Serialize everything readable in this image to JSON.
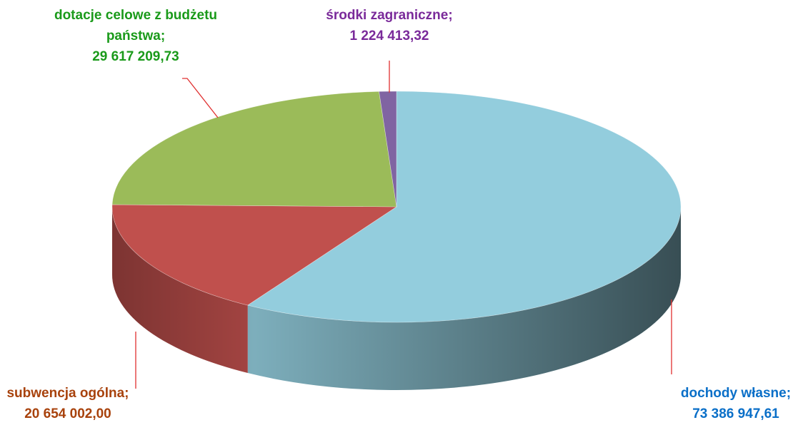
{
  "chart_data": {
    "type": "pie3d",
    "categories": [
      "dochody własne;",
      "subwencja ogólna;",
      "dotacje celowe z budżetu państwa;",
      "środki zagraniczne;"
    ],
    "values": [
      73386947.61,
      20654002.0,
      29617209.73,
      1224413.32
    ],
    "value_labels": [
      "73 386 947,61",
      "20 654 002,00",
      "29 617 209,73",
      "1 224 413,32"
    ],
    "colors": [
      "#93cddd",
      "#c0504d",
      "#9bbb59",
      "#8064a2"
    ],
    "label_colors": [
      "#0a6fc8",
      "#a8420c",
      "#1a9a1a",
      "#7a2a9a"
    ]
  }
}
